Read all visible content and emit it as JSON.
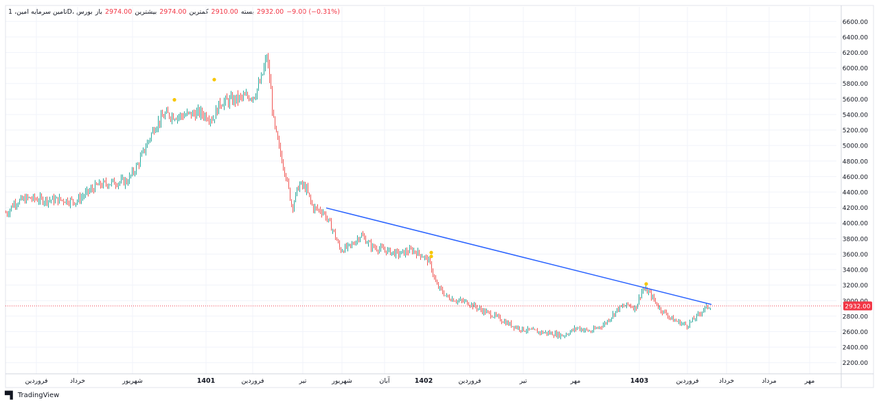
{
  "header": {
    "symbol": "تامین سرمایه امین، 1D، بورس",
    "open_label": "باز",
    "open": "2974.00",
    "high_label": "بیشترین",
    "high": "2974.00",
    "low_label": "کمترین",
    "low": "2910.00",
    "close_label": "بسته",
    "close": "2932.00",
    "change": "−9.00 (−0.31%)"
  },
  "branding": {
    "logo_icon": "tradingview-logo-icon",
    "name": "TradingView"
  },
  "colors": {
    "up": "#26a69a",
    "down": "#ef5350",
    "trendline": "#2962ff",
    "price_line": "#f23645",
    "marker": "#f7c600"
  },
  "chart_data": {
    "type": "candlestick",
    "ylim": [
      2100,
      6700
    ],
    "y_ticks": [
      2200,
      2400,
      2600,
      2800,
      3000,
      3200,
      3400,
      3600,
      3800,
      4000,
      4200,
      4400,
      4600,
      4800,
      5000,
      5200,
      5400,
      5600,
      5800,
      6000,
      6200,
      6400,
      6600
    ],
    "y_tick_labels": [
      "2200.00",
      "2400.00",
      "2600.00",
      "2800.00",
      "3000.00",
      "3200.00",
      "3400.00",
      "3600.00",
      "3800.00",
      "4000.00",
      "4200.00",
      "4400.00",
      "4600.00",
      "4800.00",
      "5000.00",
      "5200.00",
      "5400.00",
      "5600.00",
      "5800.00",
      "6000.00",
      "6200.00",
      "6400.00",
      "6600.00"
    ],
    "x_labels": [
      {
        "label": "فروردین",
        "bold": false
      },
      {
        "label": "خرداد",
        "bold": false
      },
      {
        "label": "شهریور",
        "bold": false
      },
      {
        "label": "1401",
        "bold": true
      },
      {
        "label": "فروردین",
        "bold": false
      },
      {
        "label": "تیر",
        "bold": false
      },
      {
        "label": "شهریور",
        "bold": false
      },
      {
        "label": "آبان",
        "bold": false
      },
      {
        "label": "1402",
        "bold": true
      },
      {
        "label": "فروردین",
        "bold": false
      },
      {
        "label": "تیر",
        "bold": false
      },
      {
        "label": "مهر",
        "bold": false
      },
      {
        "label": "1403",
        "bold": true
      },
      {
        "label": "فروردین",
        "bold": false
      },
      {
        "label": "خرداد",
        "bold": false
      },
      {
        "label": "مرداد",
        "bold": false
      },
      {
        "label": "مهر",
        "bold": false
      }
    ],
    "price_path": [
      [
        0,
        4150
      ],
      [
        10,
        4130
      ],
      [
        20,
        4260
      ],
      [
        40,
        4320
      ],
      [
        60,
        4300
      ],
      [
        90,
        4300
      ],
      [
        110,
        4280
      ],
      [
        125,
        4380
      ],
      [
        140,
        4480
      ],
      [
        160,
        4520
      ],
      [
        185,
        4540
      ],
      [
        200,
        4750
      ],
      [
        215,
        5050
      ],
      [
        225,
        5250
      ],
      [
        240,
        5400
      ],
      [
        260,
        5380
      ],
      [
        290,
        5420
      ],
      [
        310,
        5350
      ],
      [
        320,
        5550
      ],
      [
        345,
        5600
      ],
      [
        370,
        5650
      ],
      [
        380,
        5850
      ],
      [
        388,
        6150
      ],
      [
        393,
        5800
      ],
      [
        398,
        5300
      ],
      [
        405,
        5000
      ],
      [
        415,
        4650
      ],
      [
        425,
        4200
      ],
      [
        435,
        4500
      ],
      [
        445,
        4450
      ],
      [
        455,
        4200
      ],
      [
        470,
        4150
      ],
      [
        485,
        3900
      ],
      [
        495,
        3650
      ],
      [
        510,
        3700
      ],
      [
        525,
        3850
      ],
      [
        540,
        3700
      ],
      [
        560,
        3650
      ],
      [
        580,
        3600
      ],
      [
        600,
        3650
      ],
      [
        615,
        3580
      ],
      [
        625,
        3500
      ],
      [
        635,
        3200
      ],
      [
        650,
        3050
      ],
      [
        665,
        3000
      ],
      [
        680,
        2980
      ],
      [
        700,
        2880
      ],
      [
        720,
        2800
      ],
      [
        740,
        2700
      ],
      [
        760,
        2630
      ],
      [
        780,
        2600
      ],
      [
        800,
        2580
      ],
      [
        820,
        2550
      ],
      [
        840,
        2650
      ],
      [
        860,
        2600
      ],
      [
        880,
        2700
      ],
      [
        900,
        2900
      ],
      [
        915,
        2950
      ],
      [
        925,
        2900
      ],
      [
        935,
        3150
      ],
      [
        945,
        3100
      ],
      [
        960,
        2900
      ],
      [
        980,
        2750
      ],
      [
        1000,
        2680
      ],
      [
        1015,
        2800
      ],
      [
        1025,
        2900
      ],
      [
        1034,
        2932
      ]
    ],
    "trendline": [
      [
        475,
        4195
      ],
      [
        1036,
        2950
      ]
    ],
    "last_price": 2932,
    "last_price_label": "2932.00",
    "markers": [
      [
        254,
        5590
      ],
      [
        312,
        5850
      ],
      [
        628,
        3620
      ],
      [
        628,
        3570
      ],
      [
        941,
        3215
      ]
    ]
  }
}
